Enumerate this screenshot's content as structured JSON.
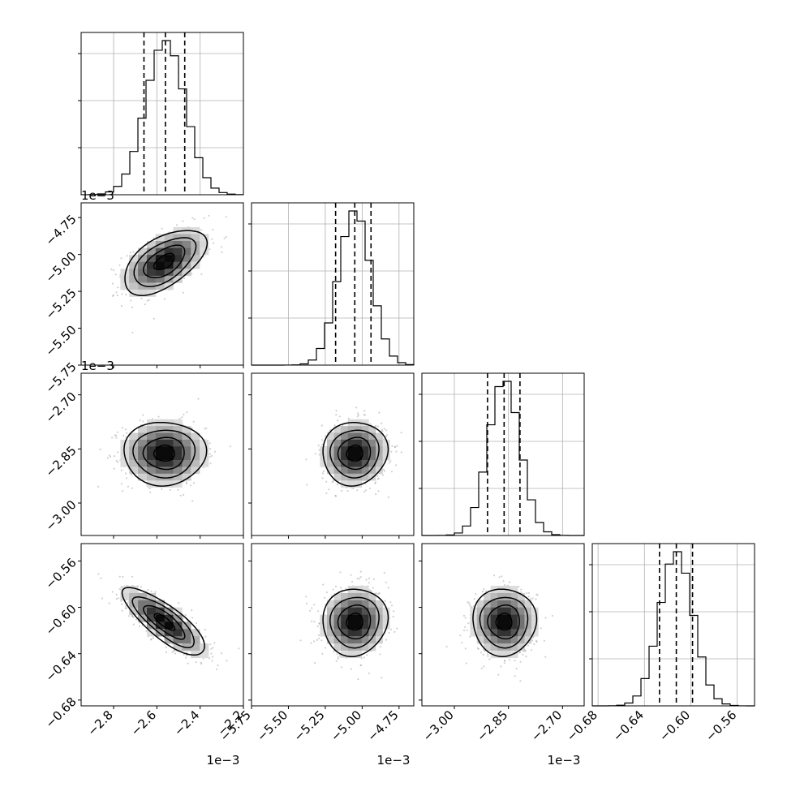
{
  "chart_data": {
    "type": "corner",
    "grid": true,
    "parameters": [
      {
        "range": [
          -2.95,
          -2.2
        ],
        "ticks": [
          -2.8,
          -2.6,
          -2.4,
          -2.2
        ],
        "tick_labels": [
          "−2.8",
          "−2.6",
          "−2.4",
          "−2.2"
        ],
        "offset_label": "1e−3",
        "mean": -2.565,
        "sigma": 0.095,
        "quantiles": [
          -2.668,
          -2.565,
          -2.472
        ],
        "hist_range": [
          -2.97,
          -2.19
        ]
      },
      {
        "range": [
          -5.75,
          -4.65
        ],
        "ticks": [
          -5.75,
          -5.5,
          -5.25,
          -5.0,
          -4.75
        ],
        "tick_labels": [
          "−5.75",
          "−5.50",
          "−5.25",
          "−5.00",
          "−4.75"
        ],
        "offset_label": "1e−3",
        "mean": -5.05,
        "sigma": 0.11,
        "quantiles": [
          -5.18,
          -5.05,
          -4.94
        ],
        "hist_range": [
          -5.75,
          -4.65
        ]
      },
      {
        "range": [
          -3.09,
          -2.64
        ],
        "ticks": [
          -3.0,
          -2.85,
          -2.7
        ],
        "tick_labels": [
          "−3.00",
          "−2.85",
          "−2.70"
        ],
        "offset_label": "1e−3",
        "mean": -2.862,
        "sigma": 0.044,
        "quantiles": [
          -2.908,
          -2.862,
          -2.818
        ],
        "hist_range": [
          -3.09,
          -2.64
        ]
      },
      {
        "range": [
          -0.685,
          -0.545
        ],
        "ticks": [
          -0.68,
          -0.64,
          -0.6,
          -0.56
        ],
        "tick_labels": [
          "−0.68",
          "−0.64",
          "−0.60",
          "−0.56"
        ],
        "offset_label": "",
        "mean": -0.6125,
        "sigma": 0.0145,
        "quantiles": [
          -0.627,
          -0.6125,
          -0.5985
        ],
        "hist_range": [
          -0.685,
          -0.545
        ]
      }
    ],
    "correlations": {
      "1-0": 0.55,
      "2-0": 0.0,
      "2-1": 0.05,
      "3-0": -0.8,
      "3-1": 0.05,
      "3-2": 0.0
    },
    "offset_labels_left": [
      "",
      "1e−3",
      "1e−3",
      ""
    ]
  }
}
